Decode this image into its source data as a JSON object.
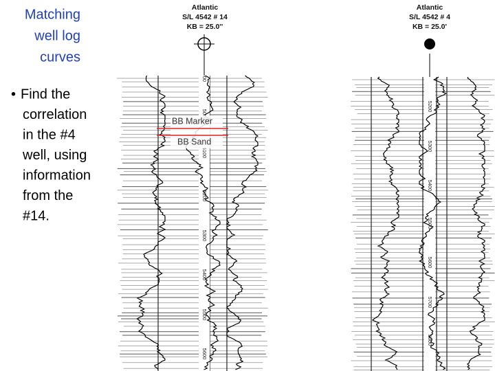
{
  "title": [
    "Matching",
    "well log",
    "curves"
  ],
  "bullet_marker": "•",
  "bullet_lines": [
    "Find the",
    "correlation",
    "in the #4",
    "well, using",
    "information",
    "from the",
    "#14."
  ],
  "wells": [
    {
      "header": [
        "Atlantic",
        "S/L 4542 # 14",
        "KB = 25.0''"
      ],
      "depth_labels": [
        "00",
        "5000",
        "5100",
        "5200",
        "5300",
        "5400",
        "5500",
        "5600"
      ]
    },
    {
      "header": [
        "Atlantic",
        "S/L 4542 # 4",
        "KB = 25.0'"
      ],
      "depth_labels": [
        "5200",
        "5300",
        "5400",
        "5500",
        "5600",
        "5700",
        "5800"
      ]
    }
  ],
  "markers": [
    "BB Marker",
    "BB Sand"
  ]
}
